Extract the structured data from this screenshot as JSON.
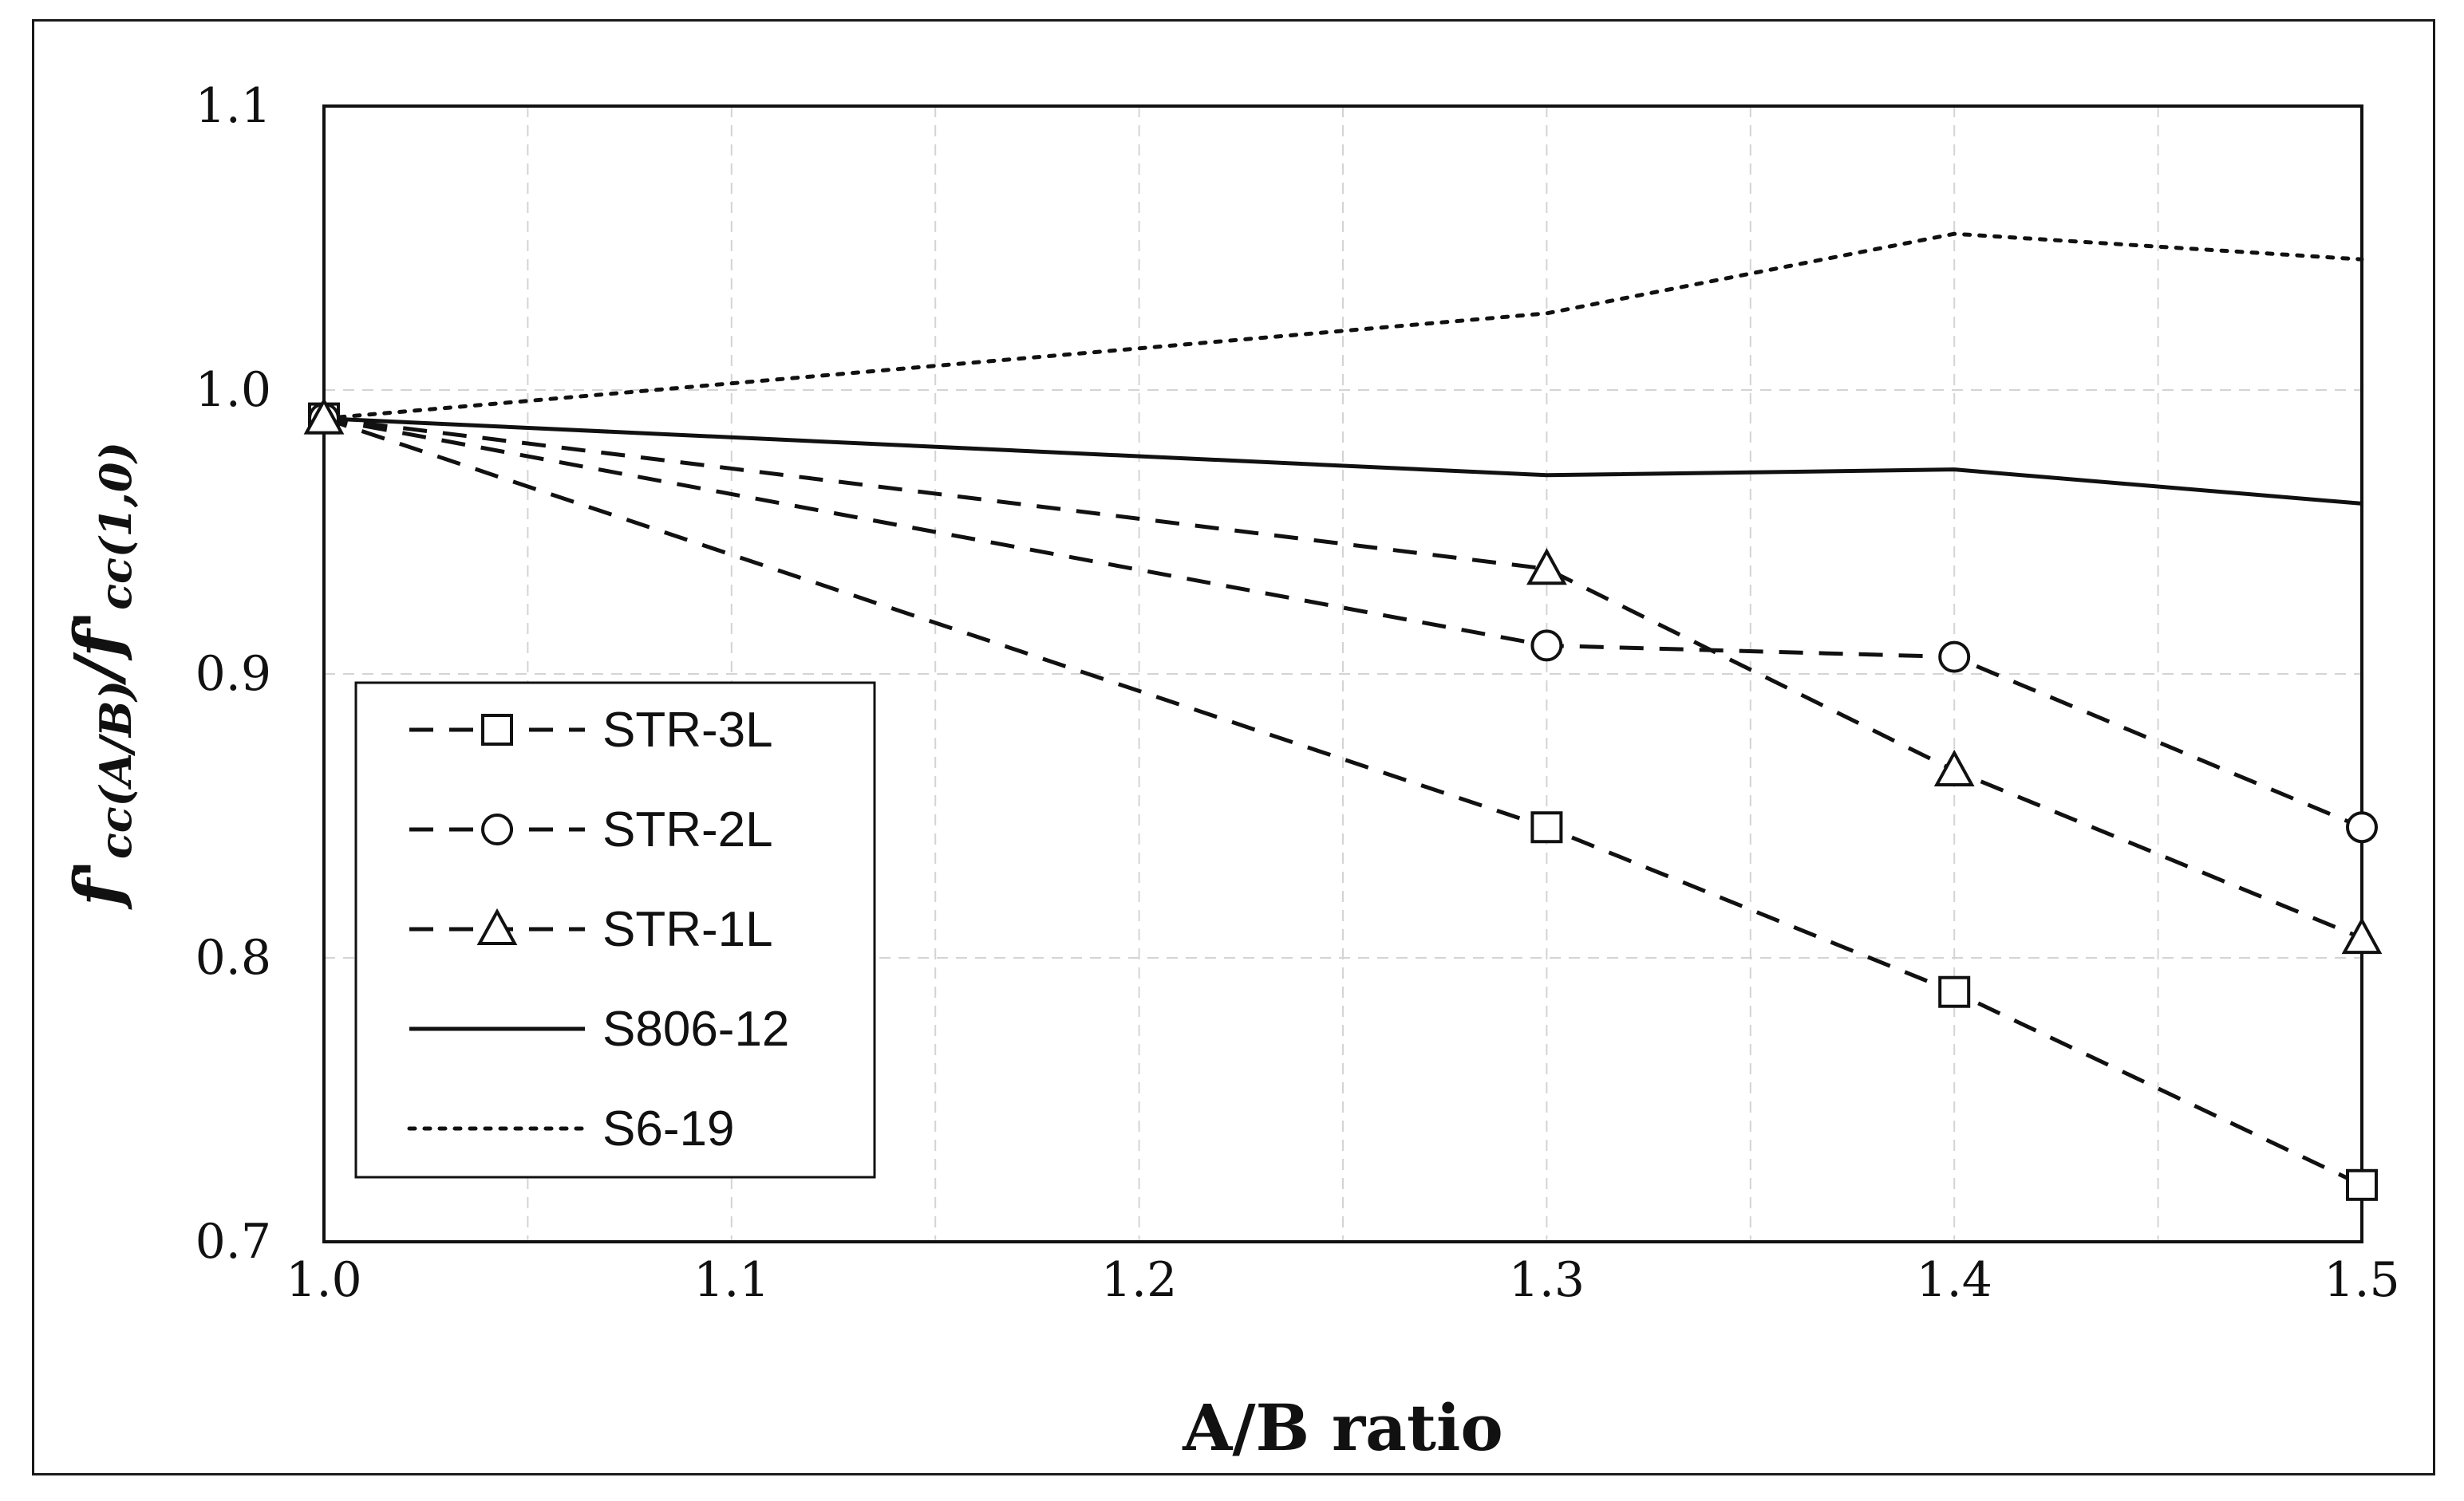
{
  "chart_data": {
    "type": "line",
    "title": "",
    "xlabel": "A/B ratio",
    "ylabel": {
      "prefix": "f'",
      "sub1": "cc(A/B)",
      "slash": "/",
      "prefix2": "f'",
      "sub2": "cc(1,0)"
    },
    "xlim": [
      1.0,
      1.5
    ],
    "ylim": [
      0.7,
      1.1
    ],
    "xticks": [
      1.0,
      1.1,
      1.2,
      1.3,
      1.4,
      1.5
    ],
    "xtick_labels": [
      "1.0",
      "1.1",
      "1.2",
      "1.3",
      "1.4",
      "1.5"
    ],
    "yticks": [
      0.7,
      0.8,
      0.9,
      1.0,
      1.1
    ],
    "ytick_labels": [
      "0.7",
      "0.8",
      "0.9",
      "1.0",
      "1.1"
    ],
    "grid": true,
    "legend_position": "bottom-left",
    "series": [
      {
        "name": "STR-3L",
        "style": "dashed",
        "marker": "square",
        "x": [
          1.0,
          1.3,
          1.4,
          1.5
        ],
        "y": [
          0.99,
          0.846,
          0.788,
          0.72
        ]
      },
      {
        "name": "STR-2L",
        "style": "dashed",
        "marker": "circle",
        "x": [
          1.0,
          1.3,
          1.4,
          1.5
        ],
        "y": [
          0.99,
          0.91,
          0.906,
          0.846
        ]
      },
      {
        "name": "STR-1L",
        "style": "dashed",
        "marker": "triangle",
        "x": [
          1.0,
          1.3,
          1.4,
          1.5
        ],
        "y": [
          0.99,
          0.937,
          0.866,
          0.807
        ]
      },
      {
        "name": "S806-12",
        "style": "solid",
        "marker": "none",
        "x": [
          1.0,
          1.3,
          1.4,
          1.5
        ],
        "y": [
          0.99,
          0.97,
          0.972,
          0.96
        ]
      },
      {
        "name": "S6-19",
        "style": "dotted",
        "marker": "none",
        "x": [
          1.0,
          1.3,
          1.4,
          1.5
        ],
        "y": [
          0.99,
          1.027,
          1.055,
          1.046
        ]
      }
    ]
  }
}
